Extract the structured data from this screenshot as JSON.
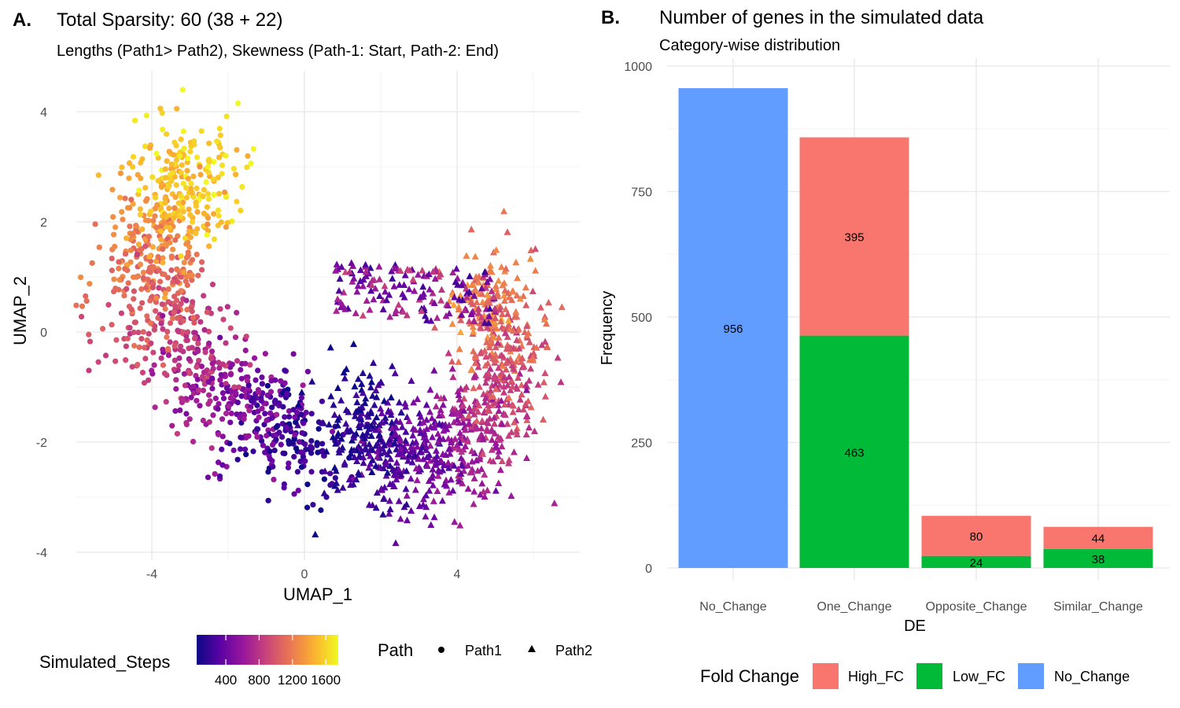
{
  "panel_a": {
    "tag": "A.",
    "title": "Total Sparsity: 60 (38 + 22)",
    "subtitle": "Lengths (Path1> Path2), Skewness (Path-1: Start, Path-2: End)"
  },
  "panel_b": {
    "tag": "B.",
    "title": "Number of genes in the simulated data",
    "subtitle": "Category-wise distribution"
  },
  "colors": {
    "High_FC": "#F8766D",
    "Low_FC": "#00BA38",
    "No_Change": "#619CFF",
    "plasma": [
      "#0d0887",
      "#5b02a3",
      "#9a179b",
      "#cb4678",
      "#eb7852",
      "#fbb32f",
      "#f0f921"
    ]
  },
  "chart_data": [
    {
      "type": "scatter",
      "xlabel": "UMAP_1",
      "ylabel": "UMAP_2",
      "xlim": [
        -6.2,
        7.0
      ],
      "ylim": [
        -4.1,
        4.7
      ],
      "x_ticks": [
        -4,
        0,
        4
      ],
      "y_ticks": [
        -4,
        -2,
        0,
        2,
        4
      ],
      "x_tick_labels": [
        "-4",
        "0",
        "4"
      ],
      "y_tick_labels": [
        "-4",
        "-2",
        "0",
        "2",
        "4"
      ],
      "grid": true,
      "n_points_approx": 2000,
      "series": [
        {
          "name": "Path1",
          "shape": "circle",
          "steps_range": [
            50,
            1700
          ],
          "centroid_early": [
            0.2,
            -2.2
          ],
          "centroid_late": [
            -4.5,
            1.5
          ]
        },
        {
          "name": "Path2",
          "shape": "triangle",
          "steps_range": [
            50,
            1300
          ],
          "centroid_early": [
            0.8,
            -1.5
          ],
          "centroid_late": [
            5.8,
            -1.2
          ]
        }
      ],
      "color_legend": {
        "title": "Simulated_Steps",
        "tick_labels": [
          "400",
          "800",
          "1200",
          "1600"
        ],
        "range": [
          50,
          1750
        ]
      },
      "shape_legend": {
        "title": "Path",
        "entries": [
          "Path1",
          "Path2"
        ]
      },
      "legend_position": "bottom"
    },
    {
      "type": "bar",
      "stacked": true,
      "xlabel": "DE",
      "ylabel": "Frequency",
      "ylim": [
        0,
        1000
      ],
      "y_ticks": [
        0,
        250,
        500,
        750,
        1000
      ],
      "y_tick_labels": [
        "0",
        "250",
        "500",
        "750",
        "1000"
      ],
      "categories": [
        "No_Change",
        "One_Change",
        "Opposite_Change",
        "Similar_Change"
      ],
      "series": [
        {
          "name": "Low_FC",
          "values": [
            0,
            463,
            24,
            38
          ],
          "labels": [
            "",
            "463",
            "24",
            "38"
          ]
        },
        {
          "name": "High_FC",
          "values": [
            0,
            395,
            80,
            44
          ],
          "labels": [
            "",
            "395",
            "80",
            "44"
          ]
        },
        {
          "name": "No_Change",
          "values": [
            956,
            0,
            0,
            0
          ],
          "labels": [
            "956",
            "",
            "",
            ""
          ]
        }
      ],
      "legend": {
        "title": "Fold Change",
        "entries": [
          "High_FC",
          "Low_FC",
          "No_Change"
        ]
      },
      "legend_position": "bottom",
      "grid": true
    }
  ]
}
